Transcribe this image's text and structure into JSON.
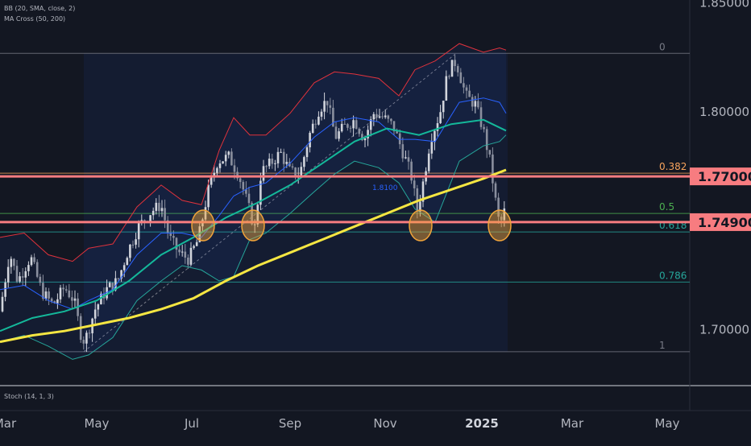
{
  "indicators": {
    "bb": "BB (20, SMA, close, 2)",
    "ma": "MA Cross (50, 200)",
    "stoch": "Stoch (14, 1, 3)"
  },
  "annotation": "1.8100",
  "colors": {
    "background": "#131722",
    "bull": "#d1d4dc",
    "bear": "#8a8f9e",
    "bb_upper": "#e0323c",
    "bb_lower": "#26a69a",
    "bb_basis": "#2962ff",
    "ma50": "#14b89a",
    "ma200": "#f5e642",
    "level": "#f77c80",
    "highlight": "#f0a33a",
    "fib": "#26a69a"
  },
  "chart_data": {
    "type": "candlestick",
    "title": "",
    "ylim": [
      1.678,
      1.851
    ],
    "y_ticks": [
      {
        "value": 1.85,
        "label": "1.85000"
      },
      {
        "value": 1.8,
        "label": "1.80000"
      },
      {
        "value": 1.7,
        "label": "1.70000"
      }
    ],
    "x_ticks": [
      "Mar",
      "May",
      "Jul",
      "Sep",
      "Nov",
      "2025",
      "Mar",
      "May"
    ],
    "price_levels": [
      {
        "value": 1.77,
        "label": "1.77000"
      },
      {
        "value": 1.749,
        "label": "1.74900"
      }
    ],
    "fibonacci": [
      {
        "ratio": "0",
        "value": 1.8265
      },
      {
        "ratio": "0.382",
        "value": 1.7715
      },
      {
        "ratio": "0.5",
        "value": 1.753
      },
      {
        "ratio": "0.618",
        "value": 1.7445
      },
      {
        "ratio": "0.786",
        "value": 1.7215
      },
      {
        "ratio": "1",
        "value": 1.6895
      }
    ],
    "highlight_circles": [
      "Jul",
      "Aug",
      "Nov",
      "Jan 2025"
    ],
    "price_path": [
      [
        0,
        1.708
      ],
      [
        12,
        1.735
      ],
      [
        22,
        1.722
      ],
      [
        38,
        1.733
      ],
      [
        52,
        1.717
      ],
      [
        66,
        1.711
      ],
      [
        80,
        1.719
      ],
      [
        92,
        1.713
      ],
      [
        100,
        1.698
      ],
      [
        105,
        1.694
      ],
      [
        118,
        1.709
      ],
      [
        132,
        1.718
      ],
      [
        146,
        1.722
      ],
      [
        158,
        1.735
      ],
      [
        172,
        1.747
      ],
      [
        188,
        1.754
      ],
      [
        200,
        1.757
      ],
      [
        210,
        1.742
      ],
      [
        222,
        1.735
      ],
      [
        234,
        1.732
      ],
      [
        246,
        1.741
      ],
      [
        258,
        1.763
      ],
      [
        270,
        1.777
      ],
      [
        284,
        1.779
      ],
      [
        296,
        1.771
      ],
      [
        306,
        1.759
      ],
      [
        316,
        1.746
      ],
      [
        324,
        1.772
      ],
      [
        336,
        1.776
      ],
      [
        348,
        1.781
      ],
      [
        360,
        1.772
      ],
      [
        372,
        1.771
      ],
      [
        384,
        1.789
      ],
      [
        396,
        1.801
      ],
      [
        406,
        1.805
      ],
      [
        416,
        1.788
      ],
      [
        428,
        1.793
      ],
      [
        440,
        1.796
      ],
      [
        452,
        1.787
      ],
      [
        464,
        1.799
      ],
      [
        476,
        1.797
      ],
      [
        488,
        1.793
      ],
      [
        500,
        1.781
      ],
      [
        510,
        1.771
      ],
      [
        518,
        1.754
      ],
      [
        526,
        1.769
      ],
      [
        534,
        1.787
      ],
      [
        546,
        1.799
      ],
      [
        556,
        1.818
      ],
      [
        566,
        1.823
      ],
      [
        578,
        1.807
      ],
      [
        590,
        1.803
      ],
      [
        600,
        1.791
      ],
      [
        608,
        1.777
      ],
      [
        614,
        1.761
      ],
      [
        620,
        1.747
      ],
      [
        626,
        1.754
      ]
    ],
    "bb_upper": [
      [
        0,
        1.742
      ],
      [
        30,
        1.744
      ],
      [
        60,
        1.734
      ],
      [
        90,
        1.731
      ],
      [
        110,
        1.737
      ],
      [
        140,
        1.739
      ],
      [
        170,
        1.756
      ],
      [
        200,
        1.766
      ],
      [
        226,
        1.759
      ],
      [
        250,
        1.757
      ],
      [
        272,
        1.782
      ],
      [
        290,
        1.797
      ],
      [
        310,
        1.789
      ],
      [
        330,
        1.789
      ],
      [
        360,
        1.799
      ],
      [
        390,
        1.813
      ],
      [
        415,
        1.818
      ],
      [
        440,
        1.817
      ],
      [
        470,
        1.815
      ],
      [
        495,
        1.807
      ],
      [
        515,
        1.819
      ],
      [
        540,
        1.823
      ],
      [
        570,
        1.831
      ],
      [
        600,
        1.827
      ],
      [
        620,
        1.829
      ],
      [
        628,
        1.828
      ]
    ],
    "bb_lower": [
      [
        0,
        1.694
      ],
      [
        30,
        1.697
      ],
      [
        60,
        1.692
      ],
      [
        90,
        1.686
      ],
      [
        110,
        1.688
      ],
      [
        140,
        1.696
      ],
      [
        170,
        1.713
      ],
      [
        200,
        1.722
      ],
      [
        226,
        1.729
      ],
      [
        250,
        1.727
      ],
      [
        272,
        1.722
      ],
      [
        290,
        1.724
      ],
      [
        310,
        1.741
      ],
      [
        330,
        1.744
      ],
      [
        360,
        1.753
      ],
      [
        390,
        1.763
      ],
      [
        415,
        1.771
      ],
      [
        440,
        1.777
      ],
      [
        470,
        1.774
      ],
      [
        495,
        1.767
      ],
      [
        515,
        1.755
      ],
      [
        540,
        1.749
      ],
      [
        570,
        1.777
      ],
      [
        600,
        1.784
      ],
      [
        620,
        1.786
      ],
      [
        628,
        1.789
      ]
    ],
    "bb_basis": [
      [
        0,
        1.718
      ],
      [
        30,
        1.72
      ],
      [
        60,
        1.713
      ],
      [
        90,
        1.709
      ],
      [
        110,
        1.713
      ],
      [
        140,
        1.718
      ],
      [
        170,
        1.734
      ],
      [
        200,
        1.744
      ],
      [
        226,
        1.744
      ],
      [
        250,
        1.742
      ],
      [
        272,
        1.752
      ],
      [
        290,
        1.761
      ],
      [
        310,
        1.765
      ],
      [
        330,
        1.767
      ],
      [
        360,
        1.776
      ],
      [
        390,
        1.788
      ],
      [
        415,
        1.795
      ],
      [
        440,
        1.797
      ],
      [
        470,
        1.795
      ],
      [
        495,
        1.787
      ],
      [
        515,
        1.787
      ],
      [
        540,
        1.786
      ],
      [
        570,
        1.804
      ],
      [
        600,
        1.806
      ],
      [
        620,
        1.804
      ],
      [
        628,
        1.799
      ]
    ],
    "ma50": [
      [
        0,
        1.699
      ],
      [
        40,
        1.705
      ],
      [
        80,
        1.708
      ],
      [
        120,
        1.713
      ],
      [
        160,
        1.722
      ],
      [
        200,
        1.734
      ],
      [
        240,
        1.742
      ],
      [
        280,
        1.751
      ],
      [
        320,
        1.758
      ],
      [
        360,
        1.766
      ],
      [
        400,
        1.776
      ],
      [
        440,
        1.786
      ],
      [
        480,
        1.792
      ],
      [
        520,
        1.789
      ],
      [
        560,
        1.794
      ],
      [
        600,
        1.796
      ],
      [
        628,
        1.791
      ]
    ],
    "ma200": [
      [
        0,
        1.694
      ],
      [
        40,
        1.697
      ],
      [
        80,
        1.699
      ],
      [
        120,
        1.702
      ],
      [
        160,
        1.705
      ],
      [
        200,
        1.709
      ],
      [
        240,
        1.714
      ],
      [
        280,
        1.722
      ],
      [
        320,
        1.729
      ],
      [
        360,
        1.735
      ],
      [
        400,
        1.741
      ],
      [
        440,
        1.747
      ],
      [
        480,
        1.753
      ],
      [
        520,
        1.759
      ],
      [
        560,
        1.764
      ],
      [
        600,
        1.769
      ],
      [
        628,
        1.773
      ]
    ]
  }
}
